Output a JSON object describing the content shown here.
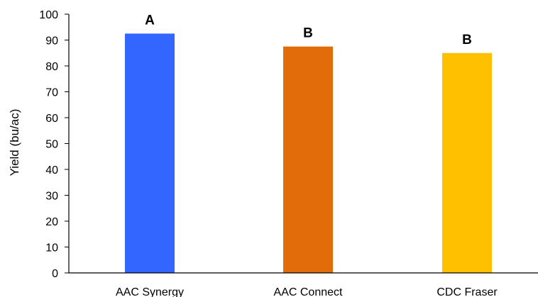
{
  "chart_data": {
    "type": "bar",
    "title": "",
    "xlabel": "",
    "ylabel": "Yield (bu/ac)",
    "ylim": [
      0,
      100
    ],
    "yticks": [
      0,
      10,
      20,
      30,
      40,
      50,
      60,
      70,
      80,
      90,
      100
    ],
    "grid": false,
    "legend": "none",
    "categories": [
      "AAC Synergy",
      "AAC Connect",
      "CDC Fraser"
    ],
    "values": [
      92.5,
      87.5,
      85
    ],
    "colors": [
      "#3366ff",
      "#e36c0a",
      "#ffc000"
    ],
    "annotations": [
      "A",
      "B",
      "B"
    ]
  }
}
